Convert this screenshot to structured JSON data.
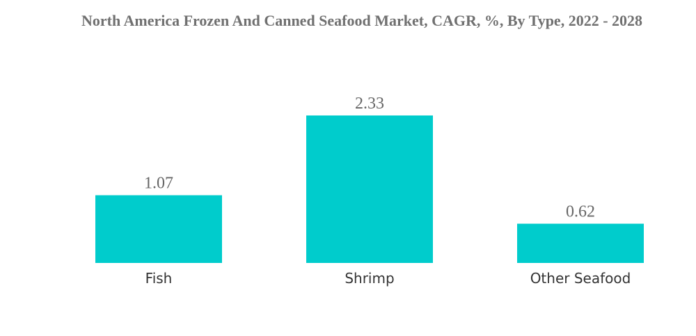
{
  "chart_data": {
    "type": "bar",
    "title": "North America Frozen And Canned Seafood Market, CAGR, %, By Type, 2022 - 2028",
    "categories": [
      "Fish",
      "Shrimp",
      "Other Seafood"
    ],
    "values": [
      1.07,
      2.33,
      0.62
    ],
    "value_labels": [
      "1.07",
      "2.33",
      "0.62"
    ],
    "xlabel": "",
    "ylabel": "",
    "grid": false,
    "legend": "none",
    "colors": {
      "bar": "#00CCCC"
    }
  }
}
